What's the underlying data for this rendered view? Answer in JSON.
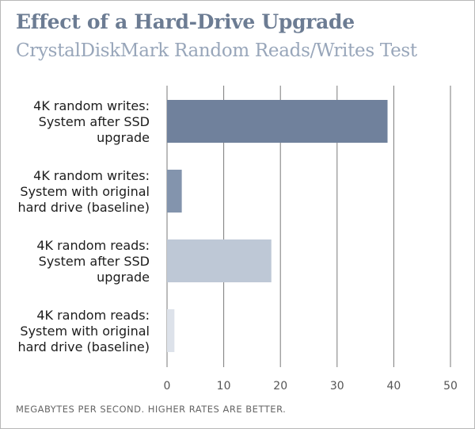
{
  "chart_data": {
    "type": "bar",
    "orientation": "horizontal",
    "title": "Effect of a Hard-Drive Upgrade",
    "subtitle": "CrystalDiskMark Random Reads/Writes Test",
    "categories": [
      [
        "4K random writes:",
        "System after SSD",
        "upgrade"
      ],
      [
        "4K random writes:",
        "System with original",
        "hard drive (baseline)"
      ],
      [
        "4K random reads:",
        "System after SSD",
        "upgrade"
      ],
      [
        "4K random reads:",
        "System with original",
        "hard drive (baseline)"
      ]
    ],
    "values": [
      38.9,
      2.6,
      18.4,
      1.3
    ],
    "bar_colors": [
      "#70819c",
      "#8394ad",
      "#bec8d6",
      "#dde2ea"
    ],
    "xlim": [
      0,
      50
    ],
    "xticks": [
      "0",
      "10",
      "20",
      "30",
      "40",
      "50"
    ],
    "xlabel": "MEGABYTES PER SECOND. HIGHER RATES ARE BETTER.",
    "grid": "vertical"
  }
}
